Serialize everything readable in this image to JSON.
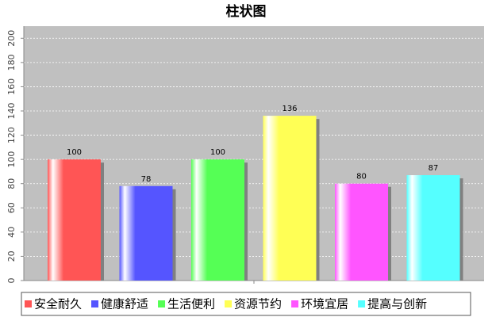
{
  "chart_data": {
    "type": "bar",
    "title": "柱状图",
    "categories": [
      "安全耐久",
      "健康舒适",
      "生活便利",
      "资源节约",
      "环境宜居",
      "提高与创新"
    ],
    "values": [
      100,
      78,
      100,
      136,
      80,
      87
    ],
    "colors": [
      "#ff5555",
      "#5555ff",
      "#55ff55",
      "#ffff55",
      "#ff55ff",
      "#55ffff"
    ],
    "ylim": [
      0,
      210
    ],
    "yticks": [
      0,
      20,
      40,
      60,
      80,
      100,
      120,
      140,
      160,
      180,
      200
    ],
    "grid": true
  }
}
